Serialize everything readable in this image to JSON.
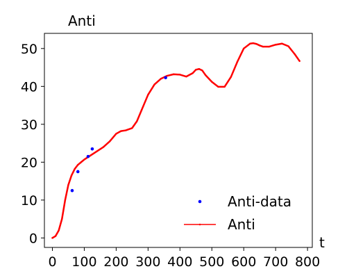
{
  "chart_data": {
    "type": "line",
    "title": "Anti",
    "xlabel": "t",
    "ylabel": "",
    "xlim": [
      -25,
      815
    ],
    "ylim": [
      -2.5,
      54
    ],
    "xticks": [
      0,
      100,
      200,
      300,
      400,
      500,
      600,
      700,
      800
    ],
    "yticks": [
      0,
      10,
      20,
      30,
      40,
      50
    ],
    "grid": false,
    "legend_position": "lower-right",
    "series": [
      {
        "name": "Anti-data",
        "kind": "scatter",
        "color": "#0000ff",
        "x": [
          62,
          80,
          112,
          125,
          355
        ],
        "y": [
          12.5,
          17.5,
          21.5,
          23.5,
          42.3
        ]
      },
      {
        "name": "Anti",
        "kind": "line",
        "color": "#ff0000",
        "x": [
          0,
          10,
          20,
          30,
          40,
          50,
          60,
          70,
          80,
          90,
          100,
          120,
          140,
          160,
          180,
          200,
          215,
          230,
          250,
          265,
          280,
          300,
          320,
          340,
          360,
          380,
          400,
          420,
          440,
          450,
          460,
          470,
          480,
          500,
          520,
          540,
          560,
          580,
          600,
          620,
          630,
          640,
          650,
          660,
          680,
          700,
          720,
          740,
          760,
          775
        ],
        "y": [
          0,
          0.5,
          2,
          5,
          10,
          14,
          16.5,
          18.2,
          19.3,
          20,
          20.7,
          21.8,
          22.9,
          24,
          25.5,
          27.5,
          28.2,
          28.4,
          29,
          30.8,
          33.8,
          37.8,
          40.5,
          42,
          42.8,
          43.2,
          43.1,
          42.6,
          43.5,
          44.4,
          44.6,
          44.2,
          43,
          41.2,
          39.9,
          39.9,
          42.5,
          46.5,
          50,
          51.3,
          51.4,
          51.2,
          50.8,
          50.5,
          50.5,
          51,
          51.3,
          50.6,
          48.5,
          46.7
        ]
      }
    ]
  }
}
